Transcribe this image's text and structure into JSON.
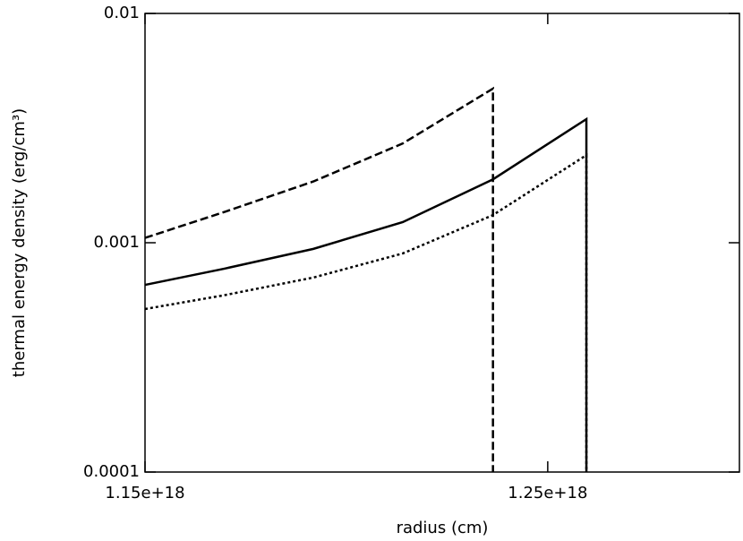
{
  "chart_data": {
    "type": "line",
    "xlabel": "radius (cm)",
    "ylabel": "thermal energy density (erg/cm³)",
    "xlim": [
      1.15e+18,
      1.2976e+18
    ],
    "xticks": [
      {
        "value": 1.15e+18,
        "label": "1.15e+18"
      },
      {
        "value": 1.25e+18,
        "label": "1.25e+18"
      }
    ],
    "ylim": [
      0.0001,
      0.01
    ],
    "yticks": [
      0.0001,
      0.001,
      0.01
    ],
    "ylog": true,
    "series": [
      {
        "color": "#000000",
        "dash": "solid",
        "x": [
          1.15e+18,
          1.1696e+18,
          1.1918e+18,
          1.214e+18,
          1.2364e+18,
          1.2596e+18,
          1.2596e+18
        ],
        "values": [
          0.000655,
          0.00077,
          0.00094,
          0.00123,
          0.00189,
          0.00346,
          0.0001
        ]
      },
      {
        "color": "#000000",
        "dash": "dashed",
        "x": [
          1.15e+18,
          1.1696e+18,
          1.1918e+18,
          1.214e+18,
          1.2364e+18,
          1.2364e+18
        ],
        "values": [
          0.00105,
          0.00136,
          0.00185,
          0.00271,
          0.0047,
          0.0001
        ]
      },
      {
        "color": "#000000",
        "dash": "dotted",
        "x": [
          1.15e+18,
          1.1696e+18,
          1.1918e+18,
          1.214e+18,
          1.2364e+18,
          1.2596e+18,
          1.2596e+18
        ],
        "values": [
          0.000514,
          0.00059,
          0.000705,
          0.000898,
          0.00132,
          0.00241,
          0.0001
        ]
      }
    ]
  }
}
